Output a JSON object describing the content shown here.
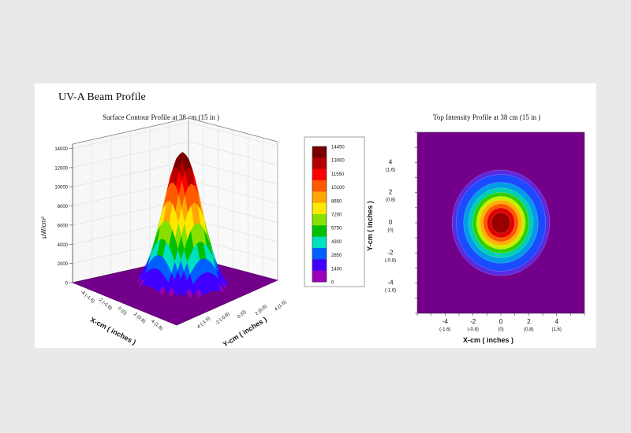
{
  "page_title": "UV-A Beam Profile",
  "chart_data": [
    {
      "type": "surface3d",
      "title": "Surface Contour Profile at 38 cm (15 in )",
      "zlabel": "µW/cm²",
      "xlabel": "X-cm ( inches )",
      "ylabel": "Y-cm ( inches )",
      "zlim": [
        0,
        14450
      ],
      "z_ticks": [
        "0",
        "2000",
        "4000",
        "6000",
        "8000",
        "10000",
        "12000",
        "14000"
      ],
      "x_ticks": [
        {
          "cm": "-4",
          "in": "(-1.6)"
        },
        {
          "cm": "-2",
          "in": "(-0.8)"
        },
        {
          "cm": "0",
          "in": "(0)"
        },
        {
          "cm": "2",
          "in": "(0.8)"
        },
        {
          "cm": "4",
          "in": "(1.6)"
        }
      ],
      "y_ticks": [
        {
          "cm": "-4",
          "in": "(-1.6)"
        },
        {
          "cm": "-2",
          "in": "(-0.8)"
        },
        {
          "cm": "0",
          "in": "(0)"
        },
        {
          "cm": "2",
          "in": "(0.8)"
        },
        {
          "cm": "4",
          "in": "(1.6)"
        }
      ],
      "peak": {
        "x": 0,
        "y": 0,
        "z": 14450
      },
      "beam_radius_cm": 2.1
    },
    {
      "type": "heatmap",
      "title": "Top Intensity Profile at 38 cm (15 in )",
      "xlabel": "X-cm ( inches )",
      "ylabel": "Y-cm ( inches )",
      "xlim": [
        -6,
        6
      ],
      "ylim": [
        -6,
        6
      ],
      "x_ticks": [
        {
          "cm": "-4",
          "in": "(-1.6)"
        },
        {
          "cm": "-2",
          "in": "(-0.8)"
        },
        {
          "cm": "0",
          "in": "(0)"
        },
        {
          "cm": "2",
          "in": "(0.8)"
        },
        {
          "cm": "4",
          "in": "(1.6)"
        }
      ],
      "y_ticks": [
        {
          "cm": "4",
          "in": "(1.6)"
        },
        {
          "cm": "2",
          "in": "(0.8)"
        },
        {
          "cm": "0",
          "in": "(0)"
        },
        {
          "cm": "-2",
          "in": "(-0.8)"
        },
        {
          "cm": "-4",
          "in": "(-1.6)"
        }
      ],
      "peak": {
        "x": 0,
        "y": 0,
        "z": 14450
      },
      "beam_radius_cm": 2.1
    }
  ],
  "colorbar": {
    "levels": [
      "14450",
      "13000",
      "11550",
      "10100",
      "8650",
      "7200",
      "5750",
      "4300",
      "2850",
      "1400",
      "0"
    ],
    "colors": [
      "#7a0000",
      "#b30000",
      "#ff0000",
      "#ff5a00",
      "#ffa500",
      "#ffe800",
      "#88e000",
      "#00c000",
      "#00e0c0",
      "#0060ff",
      "#4000ff",
      "#9a00b8"
    ],
    "background_color": "#73008a"
  }
}
